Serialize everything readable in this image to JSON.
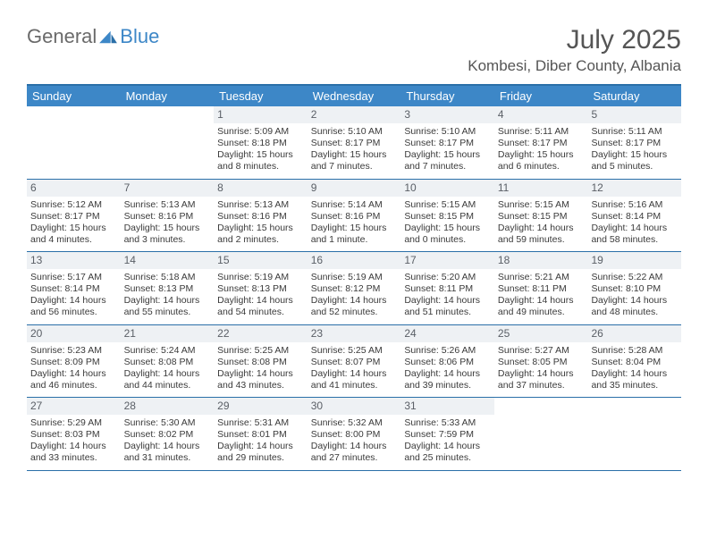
{
  "brand": {
    "part1": "General",
    "part2": "Blue"
  },
  "title": "July 2025",
  "location": "Kombesi, Diber County, Albania",
  "daynames": [
    "Sunday",
    "Monday",
    "Tuesday",
    "Wednesday",
    "Thursday",
    "Friday",
    "Saturday"
  ],
  "colors": {
    "header_bar": "#3d87c7",
    "border": "#2a6fa8",
    "datenum_bg": "#eef1f4",
    "text": "#3a3a3a",
    "title": "#555555"
  },
  "weeks": [
    [
      null,
      null,
      {
        "n": "1",
        "sr": "5:09 AM",
        "ss": "8:18 PM",
        "dl": "15 hours and 8 minutes."
      },
      {
        "n": "2",
        "sr": "5:10 AM",
        "ss": "8:17 PM",
        "dl": "15 hours and 7 minutes."
      },
      {
        "n": "3",
        "sr": "5:10 AM",
        "ss": "8:17 PM",
        "dl": "15 hours and 7 minutes."
      },
      {
        "n": "4",
        "sr": "5:11 AM",
        "ss": "8:17 PM",
        "dl": "15 hours and 6 minutes."
      },
      {
        "n": "5",
        "sr": "5:11 AM",
        "ss": "8:17 PM",
        "dl": "15 hours and 5 minutes."
      }
    ],
    [
      {
        "n": "6",
        "sr": "5:12 AM",
        "ss": "8:17 PM",
        "dl": "15 hours and 4 minutes."
      },
      {
        "n": "7",
        "sr": "5:13 AM",
        "ss": "8:16 PM",
        "dl": "15 hours and 3 minutes."
      },
      {
        "n": "8",
        "sr": "5:13 AM",
        "ss": "8:16 PM",
        "dl": "15 hours and 2 minutes."
      },
      {
        "n": "9",
        "sr": "5:14 AM",
        "ss": "8:16 PM",
        "dl": "15 hours and 1 minute."
      },
      {
        "n": "10",
        "sr": "5:15 AM",
        "ss": "8:15 PM",
        "dl": "15 hours and 0 minutes."
      },
      {
        "n": "11",
        "sr": "5:15 AM",
        "ss": "8:15 PM",
        "dl": "14 hours and 59 minutes."
      },
      {
        "n": "12",
        "sr": "5:16 AM",
        "ss": "8:14 PM",
        "dl": "14 hours and 58 minutes."
      }
    ],
    [
      {
        "n": "13",
        "sr": "5:17 AM",
        "ss": "8:14 PM",
        "dl": "14 hours and 56 minutes."
      },
      {
        "n": "14",
        "sr": "5:18 AM",
        "ss": "8:13 PM",
        "dl": "14 hours and 55 minutes."
      },
      {
        "n": "15",
        "sr": "5:19 AM",
        "ss": "8:13 PM",
        "dl": "14 hours and 54 minutes."
      },
      {
        "n": "16",
        "sr": "5:19 AM",
        "ss": "8:12 PM",
        "dl": "14 hours and 52 minutes."
      },
      {
        "n": "17",
        "sr": "5:20 AM",
        "ss": "8:11 PM",
        "dl": "14 hours and 51 minutes."
      },
      {
        "n": "18",
        "sr": "5:21 AM",
        "ss": "8:11 PM",
        "dl": "14 hours and 49 minutes."
      },
      {
        "n": "19",
        "sr": "5:22 AM",
        "ss": "8:10 PM",
        "dl": "14 hours and 48 minutes."
      }
    ],
    [
      {
        "n": "20",
        "sr": "5:23 AM",
        "ss": "8:09 PM",
        "dl": "14 hours and 46 minutes."
      },
      {
        "n": "21",
        "sr": "5:24 AM",
        "ss": "8:08 PM",
        "dl": "14 hours and 44 minutes."
      },
      {
        "n": "22",
        "sr": "5:25 AM",
        "ss": "8:08 PM",
        "dl": "14 hours and 43 minutes."
      },
      {
        "n": "23",
        "sr": "5:25 AM",
        "ss": "8:07 PM",
        "dl": "14 hours and 41 minutes."
      },
      {
        "n": "24",
        "sr": "5:26 AM",
        "ss": "8:06 PM",
        "dl": "14 hours and 39 minutes."
      },
      {
        "n": "25",
        "sr": "5:27 AM",
        "ss": "8:05 PM",
        "dl": "14 hours and 37 minutes."
      },
      {
        "n": "26",
        "sr": "5:28 AM",
        "ss": "8:04 PM",
        "dl": "14 hours and 35 minutes."
      }
    ],
    [
      {
        "n": "27",
        "sr": "5:29 AM",
        "ss": "8:03 PM",
        "dl": "14 hours and 33 minutes."
      },
      {
        "n": "28",
        "sr": "5:30 AM",
        "ss": "8:02 PM",
        "dl": "14 hours and 31 minutes."
      },
      {
        "n": "29",
        "sr": "5:31 AM",
        "ss": "8:01 PM",
        "dl": "14 hours and 29 minutes."
      },
      {
        "n": "30",
        "sr": "5:32 AM",
        "ss": "8:00 PM",
        "dl": "14 hours and 27 minutes."
      },
      {
        "n": "31",
        "sr": "5:33 AM",
        "ss": "7:59 PM",
        "dl": "14 hours and 25 minutes."
      },
      null,
      null
    ]
  ],
  "labels": {
    "sunrise": "Sunrise: ",
    "sunset": "Sunset: ",
    "daylight": "Daylight: "
  }
}
